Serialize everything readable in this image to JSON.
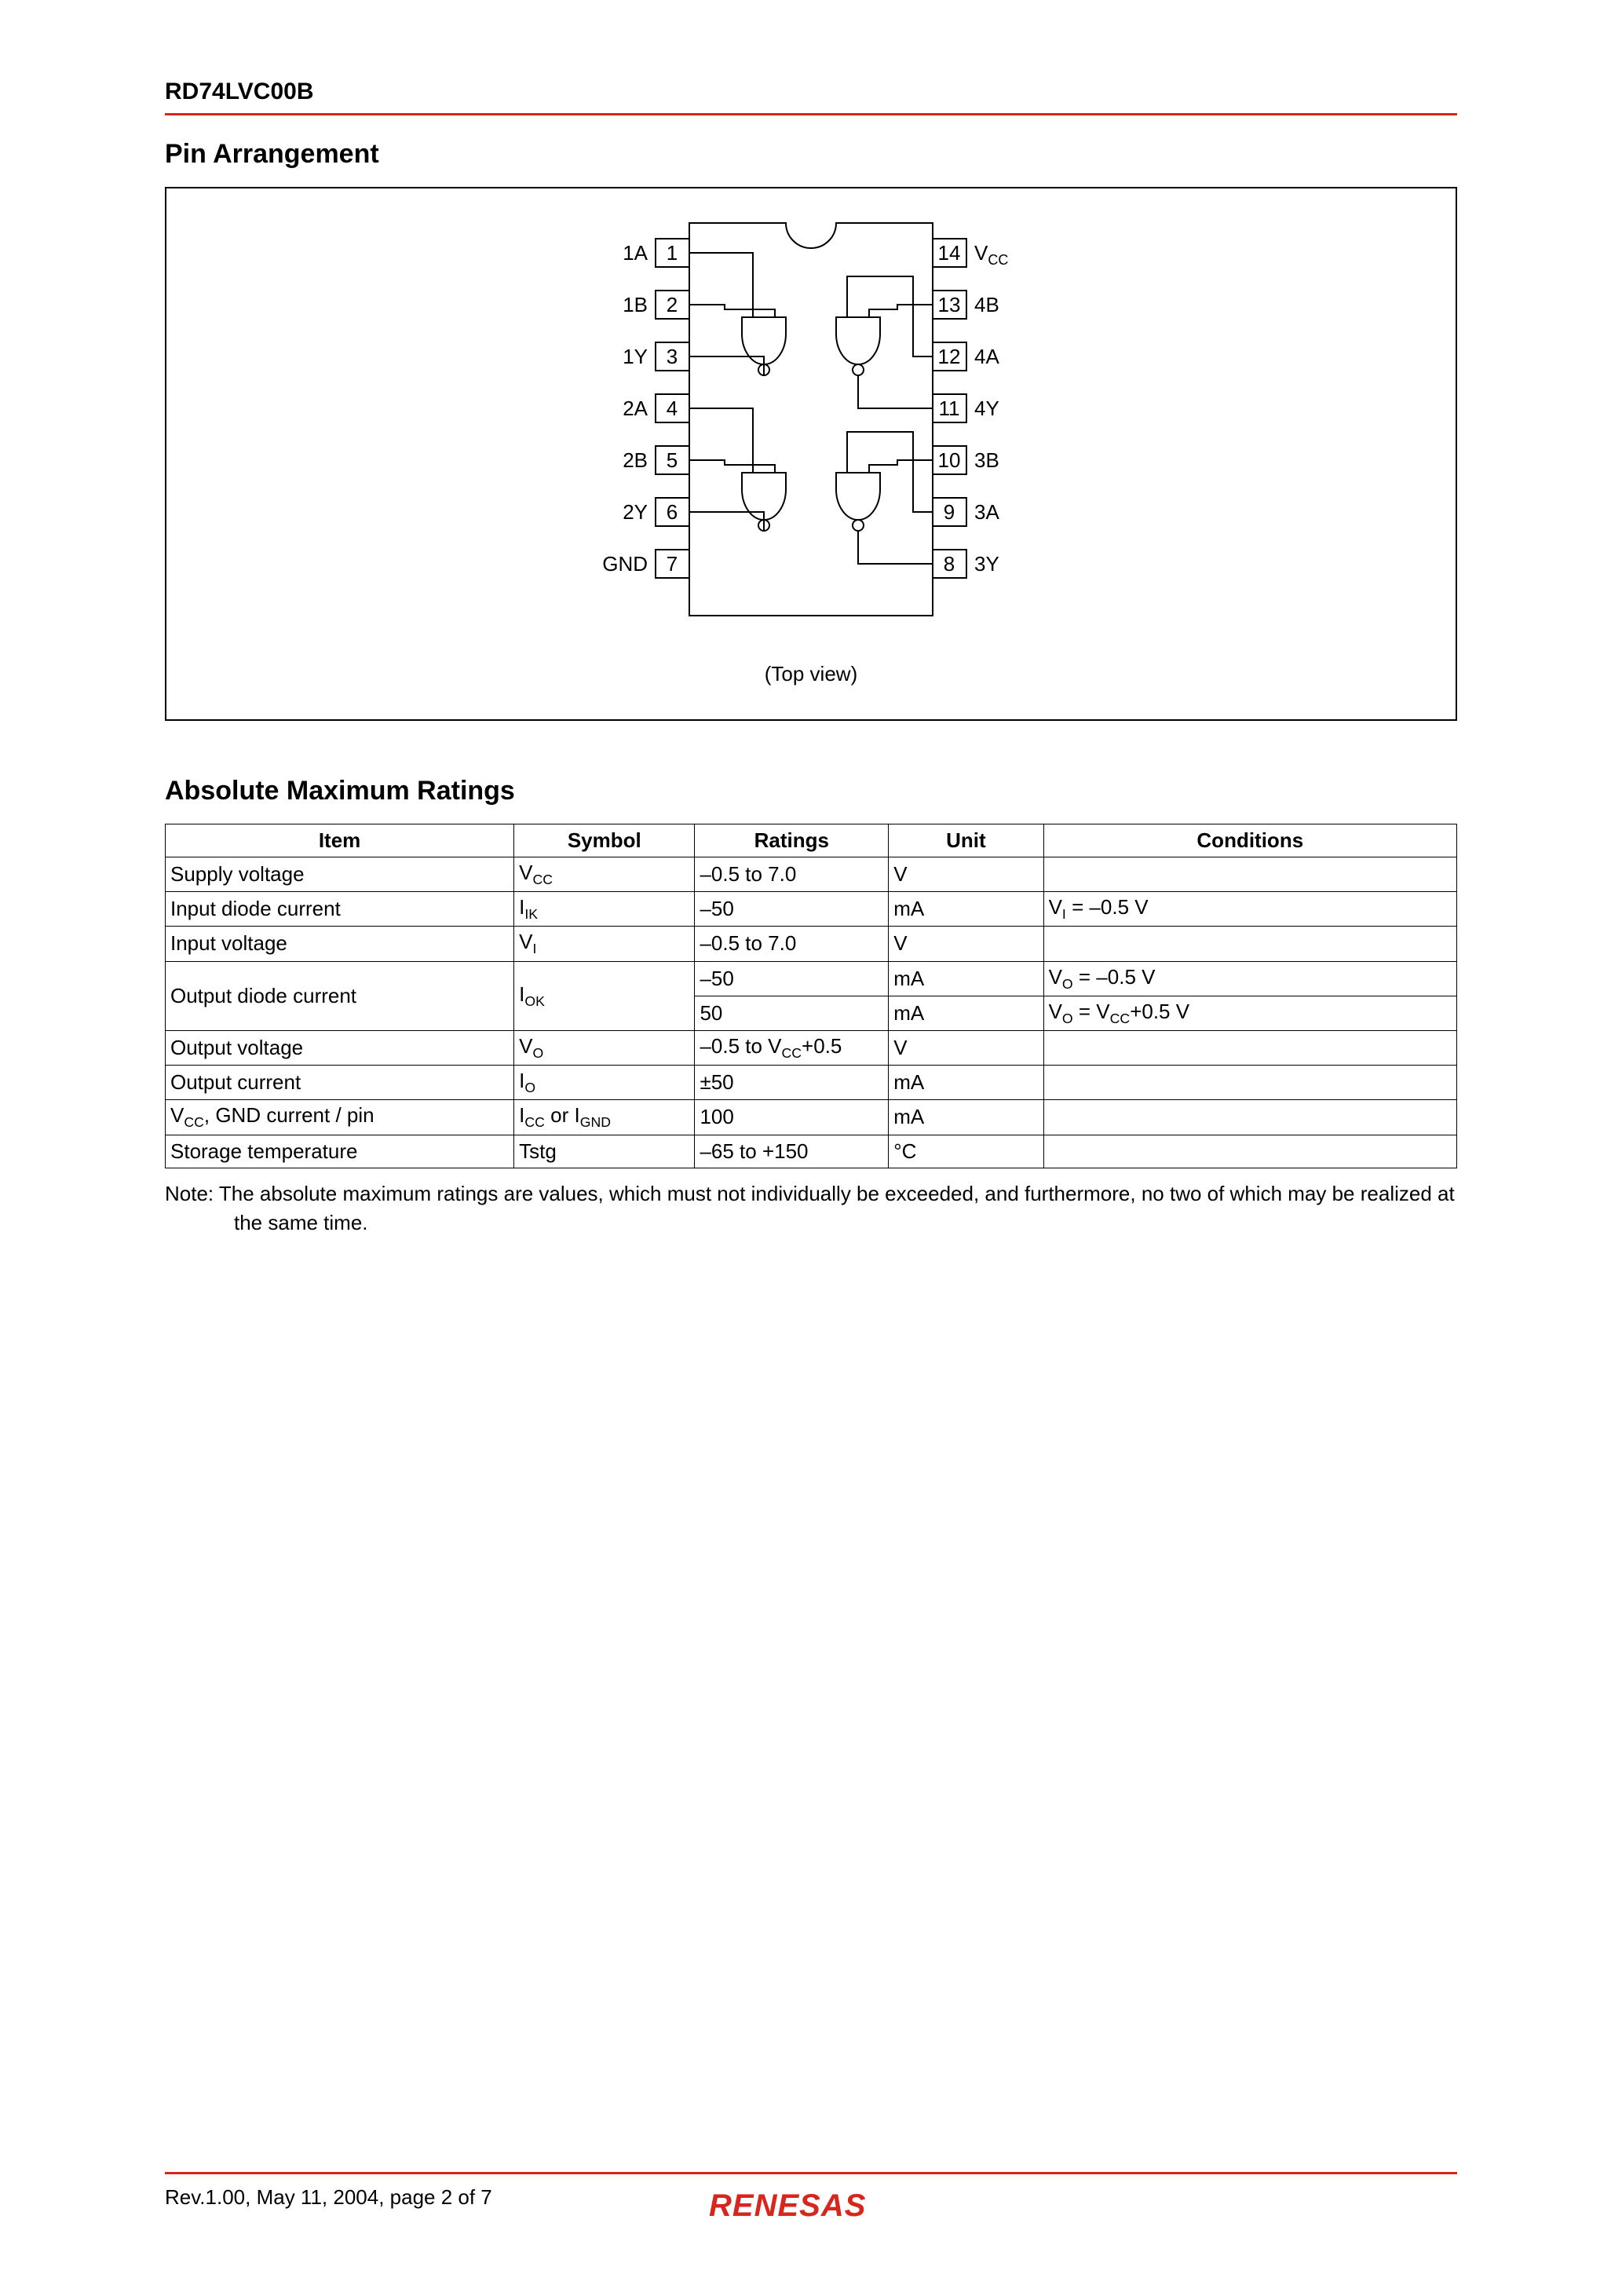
{
  "header": {
    "part_number": "RD74LVC00B"
  },
  "sections": {
    "pin_arrangement": {
      "title": "Pin Arrangement",
      "caption": "(Top view)"
    },
    "amr": {
      "title": "Absolute Maximum Ratings"
    }
  },
  "pin_diagram": {
    "left_pins": [
      {
        "label": "1A",
        "num": "1"
      },
      {
        "label": "1B",
        "num": "2"
      },
      {
        "label": "1Y",
        "num": "3"
      },
      {
        "label": "2A",
        "num": "4"
      },
      {
        "label": "2B",
        "num": "5"
      },
      {
        "label": "2Y",
        "num": "6"
      },
      {
        "label": "GND",
        "num": "7"
      }
    ],
    "right_pins": [
      {
        "num": "14",
        "label_html": "V<sub>CC</sub>"
      },
      {
        "num": "13",
        "label_html": "4B"
      },
      {
        "num": "12",
        "label_html": "4A"
      },
      {
        "num": "11",
        "label_html": "4Y"
      },
      {
        "num": "10",
        "label_html": "3B"
      },
      {
        "num": "9",
        "label_html": "3A"
      },
      {
        "num": "8",
        "label_html": "3Y"
      }
    ]
  },
  "amr_table": {
    "headers": [
      "Item",
      "Symbol",
      "Ratings",
      "Unit",
      "Conditions"
    ],
    "rows": [
      {
        "item": "Supply voltage",
        "symbol_html": "V<span class=\"sub\">CC</span>",
        "ratings": "–0.5 to 7.0",
        "unit": "V",
        "cond_html": ""
      },
      {
        "item": "Input diode current",
        "symbol_html": "I<span class=\"sub\">IK</span>",
        "ratings": "–50",
        "unit": "mA",
        "cond_html": "V<span class=\"sub\">I</span> = –0.5 V"
      },
      {
        "item": "Input voltage",
        "symbol_html": "V<span class=\"sub\">I</span>",
        "ratings": "–0.5 to 7.0",
        "unit": "V",
        "cond_html": ""
      },
      {
        "item": "Output diode current",
        "symbol_html": "I<span class=\"sub\">OK</span>",
        "ratings": "–50",
        "unit": "mA",
        "cond_html": "V<span class=\"sub\">O</span> = –0.5 V",
        "rowspan_item": 2,
        "rowspan_sym": 2
      },
      {
        "item": "",
        "symbol_html": "",
        "ratings": "50",
        "unit": "mA",
        "cond_html": "V<span class=\"sub\">O</span> = V<span class=\"sub\">CC</span>+0.5 V",
        "skip_item": true,
        "skip_sym": true
      },
      {
        "item": "Output voltage",
        "symbol_html": "V<span class=\"sub\">O</span>",
        "ratings_html": "–0.5 to V<span class=\"sub\">CC</span>+0.5",
        "unit": "V",
        "cond_html": ""
      },
      {
        "item": "Output current",
        "symbol_html": "I<span class=\"sub\">O</span>",
        "ratings": "±50",
        "unit": "mA",
        "cond_html": ""
      },
      {
        "item_html": "V<span class=\"sub\">CC</span>, GND current / pin",
        "symbol_html": "I<span class=\"sub\">CC</span> or I<span class=\"sub\">GND</span>",
        "ratings": "100",
        "unit": "mA",
        "cond_html": ""
      },
      {
        "item": "Storage temperature",
        "symbol_html": "Tstg",
        "ratings": "–65 to +150",
        "unit": "°C",
        "cond_html": ""
      }
    ]
  },
  "note": "Note:   The absolute maximum ratings are values, which must not individually be exceeded, and furthermore, no two of which may be realized at the same time.",
  "footer": {
    "rev": "Rev.1.00,  May 11, 2004,  page 2 of 7",
    "logo_text": "RENESAS",
    "logo_color": "#d8261c"
  },
  "colors": {
    "rule": "#d8261c",
    "text": "#000000",
    "bg": "#ffffff"
  }
}
